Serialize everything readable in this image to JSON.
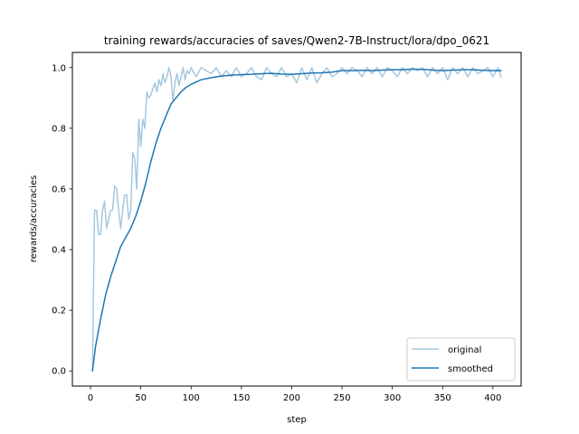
{
  "chart_data": {
    "type": "line",
    "title": "training rewards/accuracies of saves/Qwen2-7B-Instruct/lora/dpo_0621",
    "xlabel": "step",
    "ylabel": "rewards/accuracies",
    "xlim": [
      -18,
      428
    ],
    "ylim": [
      -0.05,
      1.05
    ],
    "xticks": [
      0,
      50,
      100,
      150,
      200,
      250,
      300,
      350,
      400
    ],
    "yticks": [
      0.0,
      0.2,
      0.4,
      0.6,
      0.8,
      1.0
    ],
    "xtick_labels": [
      "0",
      "50",
      "100",
      "150",
      "200",
      "250",
      "300",
      "350",
      "400"
    ],
    "ytick_labels": [
      "0.0",
      "0.2",
      "0.4",
      "0.6",
      "0.8",
      "1.0"
    ],
    "grid": false,
    "legend_position": "lower-right",
    "series": [
      {
        "name": "original",
        "color": "#a6c8e0",
        "x": [
          2,
          4,
          6,
          8,
          10,
          12,
          14,
          16,
          18,
          20,
          22,
          24,
          26,
          28,
          30,
          32,
          34,
          36,
          38,
          40,
          42,
          44,
          46,
          48,
          50,
          52,
          54,
          56,
          58,
          60,
          62,
          64,
          66,
          68,
          70,
          72,
          74,
          76,
          78,
          80,
          82,
          84,
          86,
          88,
          90,
          92,
          94,
          96,
          98,
          100,
          105,
          110,
          115,
          120,
          125,
          130,
          135,
          140,
          145,
          150,
          155,
          160,
          165,
          170,
          175,
          180,
          185,
          190,
          195,
          200,
          205,
          210,
          215,
          220,
          225,
          230,
          235,
          240,
          245,
          250,
          255,
          260,
          265,
          270,
          275,
          280,
          285,
          290,
          295,
          300,
          305,
          310,
          315,
          320,
          325,
          330,
          335,
          340,
          345,
          350,
          355,
          360,
          365,
          370,
          375,
          380,
          385,
          390,
          395,
          400,
          405,
          408
        ],
        "values": [
          0,
          0.53,
          0.53,
          0.45,
          0.45,
          0.53,
          0.56,
          0.47,
          0.5,
          0.53,
          0.53,
          0.61,
          0.6,
          0.53,
          0.47,
          0.53,
          0.58,
          0.58,
          0.5,
          0.53,
          0.72,
          0.7,
          0.6,
          0.83,
          0.74,
          0.83,
          0.8,
          0.92,
          0.9,
          0.91,
          0.93,
          0.95,
          0.92,
          0.96,
          0.94,
          0.98,
          0.95,
          0.97,
          1.0,
          0.97,
          0.89,
          0.95,
          0.98,
          0.94,
          0.97,
          1.0,
          0.96,
          0.99,
          0.98,
          1.0,
          0.97,
          1.0,
          0.99,
          0.98,
          1.0,
          0.97,
          0.99,
          0.97,
          1.0,
          0.97,
          0.98,
          1.0,
          0.97,
          0.96,
          1.0,
          0.98,
          0.97,
          1.0,
          0.97,
          0.98,
          0.95,
          1.0,
          0.96,
          1.0,
          0.95,
          0.98,
          1.0,
          0.97,
          0.98,
          1.0,
          0.98,
          1.0,
          0.99,
          0.97,
          1.0,
          0.98,
          1.0,
          0.97,
          1.0,
          0.99,
          0.97,
          1.0,
          0.98,
          1.0,
          0.99,
          1.0,
          0.97,
          1.0,
          0.98,
          1.0,
          0.96,
          1.0,
          0.98,
          1.0,
          0.97,
          1.0,
          0.98,
          0.99,
          1.0,
          0.97,
          1.0,
          0.97
        ]
      },
      {
        "name": "smoothed",
        "color": "#1f77b4",
        "x": [
          2,
          5,
          10,
          15,
          20,
          25,
          30,
          35,
          40,
          45,
          50,
          55,
          60,
          65,
          70,
          75,
          80,
          85,
          90,
          95,
          100,
          110,
          120,
          130,
          140,
          150,
          160,
          170,
          180,
          190,
          200,
          210,
          220,
          230,
          240,
          250,
          260,
          270,
          280,
          290,
          300,
          310,
          320,
          330,
          340,
          350,
          360,
          370,
          380,
          390,
          400,
          408
        ],
        "values": [
          0,
          0.08,
          0.17,
          0.25,
          0.31,
          0.36,
          0.41,
          0.44,
          0.47,
          0.51,
          0.56,
          0.62,
          0.69,
          0.75,
          0.8,
          0.84,
          0.88,
          0.9,
          0.92,
          0.935,
          0.945,
          0.96,
          0.967,
          0.972,
          0.975,
          0.977,
          0.978,
          0.98,
          0.981,
          0.979,
          0.978,
          0.98,
          0.982,
          0.983,
          0.985,
          0.99,
          0.99,
          0.991,
          0.99,
          0.992,
          0.993,
          0.993,
          0.995,
          0.994,
          0.992,
          0.99,
          0.992,
          0.993,
          0.993,
          0.991,
          0.99,
          0.99
        ]
      }
    ]
  }
}
